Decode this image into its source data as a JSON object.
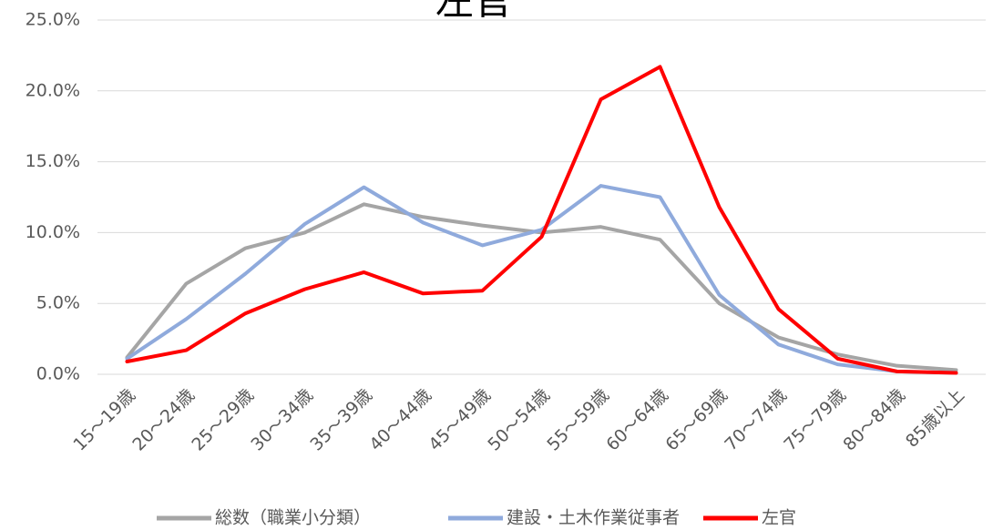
{
  "chart_data": {
    "type": "line",
    "title": "左官",
    "categories": [
      "15～19歳",
      "20～24歳",
      "25～29歳",
      "30～34歳",
      "35～39歳",
      "40～44歳",
      "45～49歳",
      "50～54歳",
      "55～59歳",
      "60～64歳",
      "65～69歳",
      "70～74歳",
      "75～79歳",
      "80～84歳",
      "85歳以上"
    ],
    "series": [
      {
        "name": "総数（職業小分類）",
        "color": "#a5a5a5",
        "values": [
          1.2,
          6.4,
          8.9,
          10.0,
          12.0,
          11.1,
          10.5,
          10.0,
          10.4,
          9.5,
          5.0,
          2.6,
          1.4,
          0.6,
          0.3
        ]
      },
      {
        "name": "建設・土木作業従事者",
        "color": "#8faadc",
        "values": [
          1.1,
          3.9,
          7.1,
          10.6,
          13.2,
          10.7,
          9.1,
          10.2,
          13.3,
          12.5,
          5.6,
          2.1,
          0.7,
          0.2,
          0.1
        ]
      },
      {
        "name": "左官",
        "color": "#ff0000",
        "values": [
          0.9,
          1.7,
          4.3,
          6.0,
          7.2,
          5.7,
          5.9,
          9.7,
          19.4,
          21.7,
          11.8,
          4.6,
          1.1,
          0.2,
          0.1
        ]
      }
    ],
    "ylim": [
      0,
      25
    ],
    "yticks": [
      {
        "value": 0,
        "label": "0.0%"
      },
      {
        "value": 5,
        "label": "5.0%"
      },
      {
        "value": 10,
        "label": "10.0%"
      },
      {
        "value": 15,
        "label": "15.0%"
      },
      {
        "value": 20,
        "label": "20.0%"
      },
      {
        "value": 25,
        "label": "25.0%"
      }
    ],
    "grid": true,
    "legend": "bottom"
  }
}
